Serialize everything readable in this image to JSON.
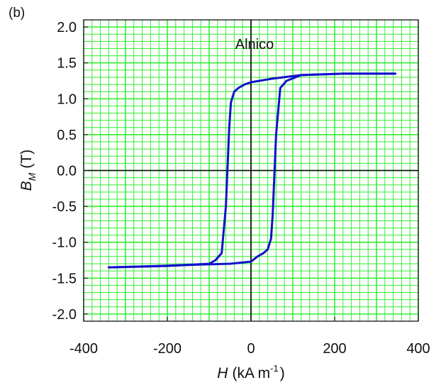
{
  "chart_data": {
    "type": "line",
    "panel_label": "(b)",
    "annotation": "Alnico",
    "xlabel": {
      "symbol": "H",
      "unit_main": "(kA m",
      "unit_exp": "-1",
      "unit_close": ")"
    },
    "ylabel": {
      "symbol": "B",
      "subscript": "M",
      "unit": "(T)"
    },
    "xlim": [
      -400,
      400
    ],
    "ylim": [
      -2.1,
      2.1
    ],
    "xticks": [
      -400,
      -200,
      0,
      200,
      400
    ],
    "xtick_labels": [
      "-400",
      "-200",
      "0",
      "200",
      "400"
    ],
    "yticks": [
      -2.0,
      -1.5,
      -1.0,
      -0.5,
      0.0,
      0.5,
      1.0,
      1.5,
      2.0
    ],
    "ytick_labels": [
      "-2.0",
      "-1.5",
      "-1.0",
      "-0.5",
      "0.0",
      "0.5",
      "1.0",
      "1.5",
      "2.0"
    ],
    "grid": true,
    "grid_color": "#33ee33",
    "line_color": "#1111cc",
    "series": [
      {
        "x": [
          -340,
          -200,
          -100,
          -85,
          -70,
          -60,
          -55,
          -52,
          -48,
          -40,
          -30,
          -15,
          0,
          50,
          120,
          220,
          345
        ],
        "y": [
          -1.35,
          -1.33,
          -1.3,
          -1.25,
          -1.15,
          -0.5,
          0.2,
          0.6,
          0.95,
          1.1,
          1.15,
          1.2,
          1.23,
          1.28,
          1.33,
          1.35,
          1.35
        ]
      },
      {
        "x": [
          345,
          220,
          120,
          85,
          70,
          60,
          55,
          52,
          48,
          40,
          30,
          15,
          0,
          -50,
          -120,
          -220,
          -340
        ],
        "y": [
          1.35,
          1.35,
          1.33,
          1.25,
          1.15,
          0.5,
          -0.2,
          -0.6,
          -0.95,
          -1.1,
          -1.15,
          -1.2,
          -1.27,
          -1.3,
          -1.31,
          -1.33,
          -1.35
        ]
      }
    ]
  }
}
